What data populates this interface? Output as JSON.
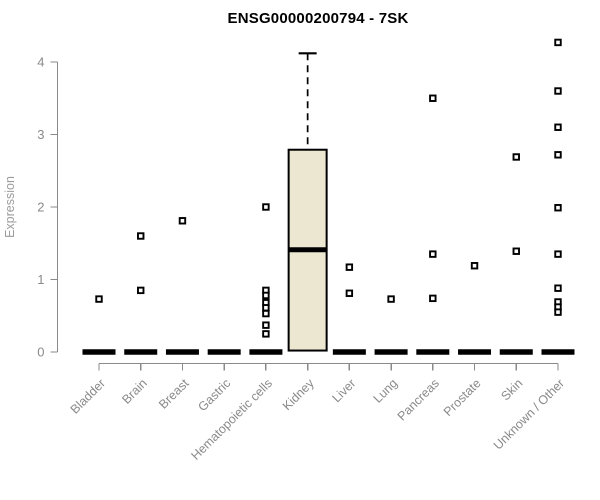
{
  "chart_data": {
    "type": "boxplot",
    "title": "ENSG00000200794 - 7SK",
    "xlabel": "",
    "ylabel": "Expression",
    "ylim": [
      0,
      4.35
    ],
    "yticks": [
      0,
      1,
      2,
      3,
      4
    ],
    "grid": false,
    "legend": "none",
    "categories": [
      "Bladder",
      "Brain",
      "Breast",
      "Gastric",
      "Hematopoietic cells",
      "Kidney",
      "Liver",
      "Lung",
      "Pancreas",
      "Prostate",
      "Skin",
      "Unknown / Other"
    ],
    "boxes": [
      {
        "category": "Bladder",
        "q1": 0,
        "median": 0,
        "q3": 0,
        "whisker_low": 0,
        "whisker_high": 0,
        "outliers": [
          0.73
        ]
      },
      {
        "category": "Brain",
        "q1": 0,
        "median": 0,
        "q3": 0,
        "whisker_low": 0,
        "whisker_high": 0,
        "outliers": [
          1.6,
          0.85
        ]
      },
      {
        "category": "Breast",
        "q1": 0,
        "median": 0,
        "q3": 0,
        "whisker_low": 0,
        "whisker_high": 0,
        "outliers": [
          1.81
        ]
      },
      {
        "category": "Gastric",
        "q1": 0,
        "median": 0,
        "q3": 0,
        "whisker_low": 0,
        "whisker_high": 0,
        "outliers": []
      },
      {
        "category": "Hematopoietic cells",
        "q1": 0,
        "median": 0,
        "q3": 0,
        "whisker_low": 0,
        "whisker_high": 0,
        "outliers": [
          2.0,
          0.85,
          0.78,
          0.68,
          0.61,
          0.53,
          0.37,
          0.25
        ]
      },
      {
        "category": "Kidney",
        "q1": 0.02,
        "median": 1.41,
        "q3": 2.79,
        "whisker_low": 0.02,
        "whisker_high": 4.12,
        "outliers": []
      },
      {
        "category": "Liver",
        "q1": 0,
        "median": 0,
        "q3": 0,
        "whisker_low": 0,
        "whisker_high": 0,
        "outliers": [
          1.17,
          0.81
        ]
      },
      {
        "category": "Lung",
        "q1": 0,
        "median": 0,
        "q3": 0,
        "whisker_low": 0,
        "whisker_high": 0,
        "outliers": [
          0.73
        ]
      },
      {
        "category": "Pancreas",
        "q1": 0,
        "median": 0,
        "q3": 0,
        "whisker_low": 0,
        "whisker_high": 0,
        "outliers": [
          3.5,
          1.35,
          0.74
        ]
      },
      {
        "category": "Prostate",
        "q1": 0,
        "median": 0,
        "q3": 0,
        "whisker_low": 0,
        "whisker_high": 0,
        "outliers": [
          1.19
        ]
      },
      {
        "category": "Skin",
        "q1": 0,
        "median": 0,
        "q3": 0,
        "whisker_low": 0,
        "whisker_high": 0,
        "outliers": [
          2.69,
          1.39
        ]
      },
      {
        "category": "Unknown / Other",
        "q1": 0,
        "median": 0,
        "q3": 0,
        "whisker_low": 0,
        "whisker_high": 0,
        "outliers": [
          4.27,
          3.6,
          3.1,
          2.72,
          1.99,
          1.35,
          0.88,
          0.69,
          0.62,
          0.55
        ]
      }
    ],
    "colors": {
      "box_fill": "#ece7d0",
      "box_stroke": "#000000",
      "median": "#000000",
      "zero_bar": "#000000",
      "outlier_stroke": "#000000",
      "outlier_fill": "#ffffff",
      "axis": "#8a8a8a",
      "tick_label": "#8a8a8a",
      "axis_title": "#9c9c9c",
      "title": "#000000"
    }
  }
}
